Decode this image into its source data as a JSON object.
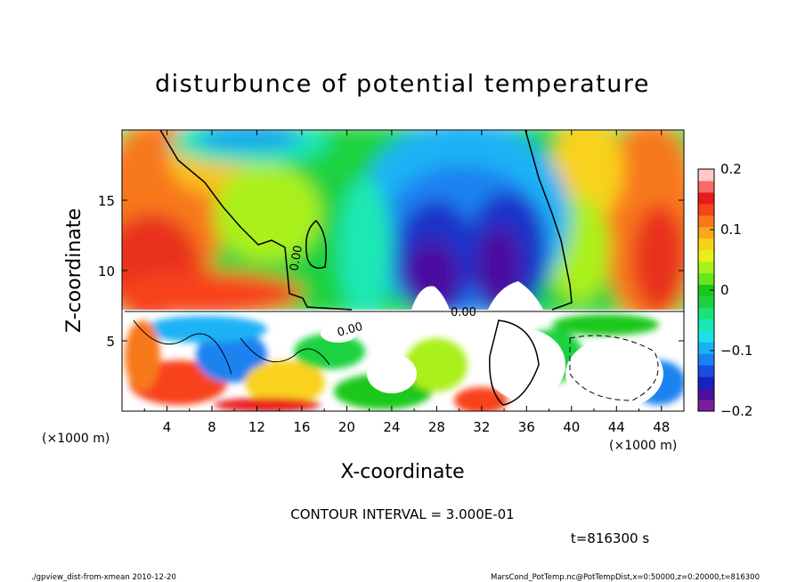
{
  "chart_data": {
    "type": "heatmap",
    "title": "disturbunce of potential temperature",
    "xlabel": "X-coordinate",
    "ylabel": "Z-coordinate",
    "x_unit_left": "(×1000 m)",
    "x_unit_right": "(×1000 m)",
    "xlim": [
      0,
      50
    ],
    "ylim": [
      0,
      20
    ],
    "x_ticks": [
      4,
      8,
      12,
      16,
      20,
      24,
      28,
      32,
      36,
      40,
      44,
      48
    ],
    "y_ticks": [
      5,
      10,
      15
    ],
    "colorbar": {
      "range": [
        -0.2,
        0.2
      ],
      "tick_values": [
        0.2,
        0.1,
        0,
        -0.1,
        -0.2
      ],
      "tick_labels": [
        "0.2",
        "0.1",
        "0",
        "−0.1",
        "−0.2"
      ],
      "colors": [
        "#7a1ea0",
        "#4b0fa0",
        "#1a20c0",
        "#1a4ee0",
        "#1a82f0",
        "#1ab2f5",
        "#1ae0e8",
        "#1ae8b4",
        "#1ae27a",
        "#1ad240",
        "#1ac81a",
        "#6ae41a",
        "#aaf01a",
        "#e8f01a",
        "#f8d21a",
        "#f8a81a",
        "#f8781a",
        "#f8421a",
        "#e81a1a",
        "#f86a6a",
        "#ffc8c8"
      ]
    },
    "contour_labels": [
      "0.00",
      "0.00",
      "0.00"
    ],
    "contour_interval_text": "CONTOUR INTERVAL = 3.000E-01",
    "time_text": "t=816300 s"
  },
  "footer": {
    "left": "./gpview_dist-from-xmean  2010-12-20",
    "right": "MarsCond_PotTemp.nc@PotTempDist,x=0:50000,z=0:20000,t=816300"
  }
}
